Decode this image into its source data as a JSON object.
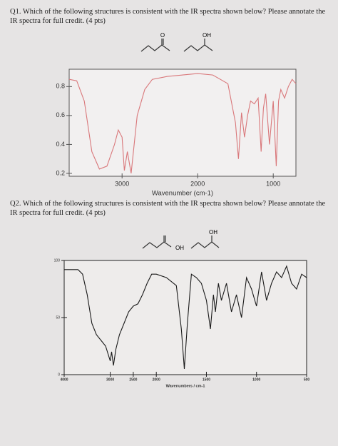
{
  "questions": [
    {
      "text": "Q1. Which of the following structures is consistent with the IR spectra shown below? Please annotate the IR spectra for full credit. (4 pts)",
      "structures": [
        "O",
        "OH"
      ]
    },
    {
      "text": "Q2. Which of the following structures is consistent with the IR spectra shown below? Please annotate the IR spectra for full credit. (4 pts)",
      "structures": [
        "OH",
        "OH"
      ]
    }
  ],
  "chart_data": [
    {
      "type": "line",
      "color": "#d9777a",
      "x_label": "Wavenumber (cm-1)",
      "x": [
        3700,
        3600,
        3500,
        3400,
        3300,
        3200,
        3100,
        3050,
        3000,
        2970,
        2930,
        2880,
        2800,
        2700,
        2600,
        2400,
        2200,
        2000,
        1800,
        1700,
        1600,
        1500,
        1460,
        1420,
        1380,
        1340,
        1300,
        1250,
        1200,
        1160,
        1130,
        1100,
        1050,
        1000,
        960,
        930,
        900,
        850,
        800,
        750,
        700
      ],
      "values": [
        0.85,
        0.84,
        0.7,
        0.35,
        0.23,
        0.25,
        0.4,
        0.5,
        0.45,
        0.22,
        0.35,
        0.2,
        0.6,
        0.78,
        0.85,
        0.87,
        0.88,
        0.89,
        0.88,
        0.85,
        0.82,
        0.55,
        0.3,
        0.62,
        0.45,
        0.6,
        0.7,
        0.68,
        0.72,
        0.35,
        0.65,
        0.75,
        0.4,
        0.7,
        0.25,
        0.7,
        0.78,
        0.72,
        0.8,
        0.85,
        0.82
      ],
      "xlim": [
        3700,
        700
      ],
      "ylim": [
        0.18,
        0.92
      ],
      "xticks": [
        3000,
        2000,
        1000
      ],
      "yticks": [
        0.2,
        0.4,
        0.6,
        0.8
      ]
    },
    {
      "type": "line",
      "color": "#1a1a1a",
      "x_label": "Wavenumbers / cm-1",
      "x": [
        4000,
        3700,
        3600,
        3500,
        3400,
        3300,
        3200,
        3100,
        3000,
        2970,
        2930,
        2880,
        2800,
        2700,
        2600,
        2500,
        2400,
        2300,
        2200,
        2100,
        2000,
        1900,
        1800,
        1750,
        1720,
        1690,
        1650,
        1600,
        1550,
        1500,
        1460,
        1430,
        1410,
        1380,
        1350,
        1300,
        1250,
        1200,
        1150,
        1100,
        1050,
        1000,
        950,
        900,
        850,
        800,
        750,
        700,
        650,
        600,
        550,
        500
      ],
      "values": [
        92,
        92,
        88,
        70,
        45,
        35,
        30,
        25,
        12,
        20,
        8,
        22,
        35,
        45,
        55,
        60,
        62,
        70,
        80,
        88,
        88,
        85,
        78,
        40,
        5,
        45,
        88,
        85,
        80,
        65,
        40,
        70,
        55,
        80,
        65,
        80,
        55,
        70,
        50,
        85,
        75,
        60,
        90,
        65,
        80,
        90,
        85,
        95,
        80,
        75,
        88,
        85
      ],
      "xlim": [
        4000,
        500
      ],
      "ylim": [
        0,
        100
      ],
      "xticks": [
        4000,
        3000,
        2500,
        2000,
        1500,
        1000,
        500
      ],
      "yticks": [
        0,
        50,
        100
      ]
    }
  ]
}
